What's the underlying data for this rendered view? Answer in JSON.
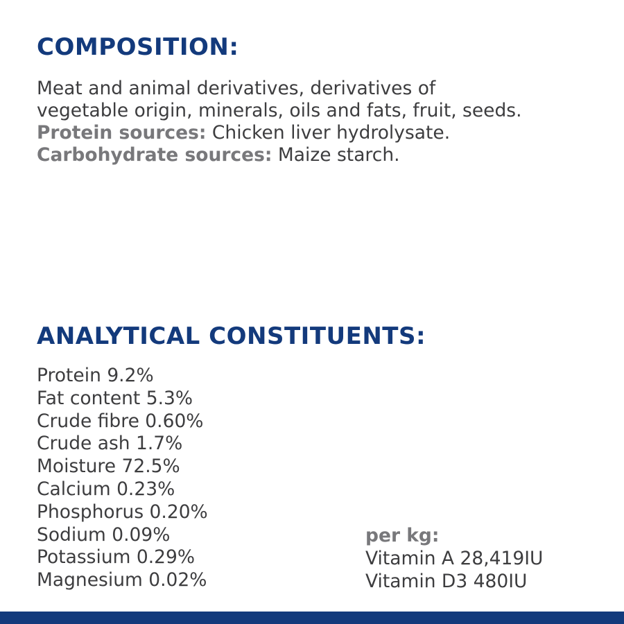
{
  "composition": {
    "heading": "COMPOSITION:",
    "line1": "Meat and animal derivatives, derivatives of",
    "line2": "vegetable origin, minerals, oils and fats, fruit, seeds.",
    "protein_label": "Protein sources:",
    "protein_value": " Chicken liver hydrolysate.",
    "carb_label": "Carbohydrate sources:",
    "carb_value": " Maize starch."
  },
  "analytical": {
    "heading": "ANALYTICAL CONSTITUENTS:",
    "items": [
      "Protein 9.2%",
      "Fat content 5.3%",
      "Crude fibre 0.60%",
      "Crude ash 1.7%",
      "Moisture 72.5%",
      "Calcium 0.23%",
      "Phosphorus 0.20%",
      "Sodium 0.09%",
      "Potassium 0.29%",
      "Magnesium 0.02%"
    ],
    "per_kg_label": "per kg:",
    "per_kg_items": [
      "Vitamin A 28,419IU",
      "Vitamin D3 480IU"
    ]
  },
  "colors": {
    "heading": "#133a7c",
    "body": "#3d3d3f",
    "label": "#78787b",
    "footer_bar": "#133a7c"
  }
}
